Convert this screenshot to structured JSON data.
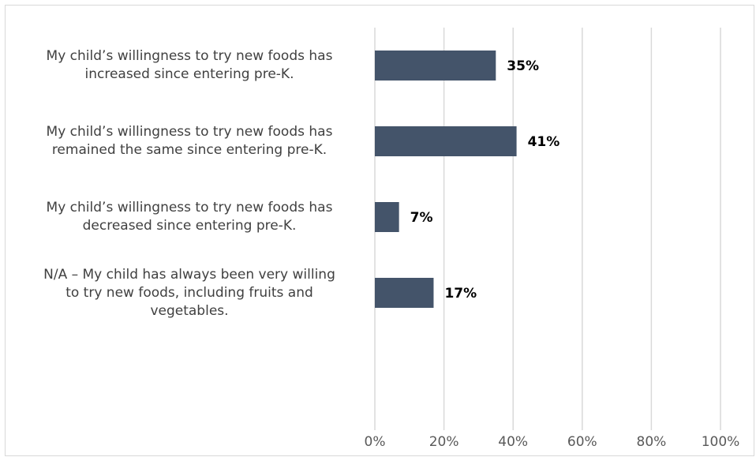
{
  "chart_data": {
    "type": "bar",
    "orientation": "horizontal",
    "categories": [
      "My child’s willingness to try new foods has increased since entering pre-K.",
      "My child’s willingness to try new foods has remained the same since entering pre-K.",
      "My child’s willingness to try new foods has decreased since entering pre-K.",
      "N/A – My child has always been very willing to try new foods, including fruits and vegetables."
    ],
    "category_lines": [
      [
        "My child’s willingness to try new foods has",
        "increased since entering pre-K."
      ],
      [
        "My child’s willingness to try new foods has",
        "remained the same since entering pre-K."
      ],
      [
        "My child’s willingness to try new foods has",
        "decreased since entering pre-K."
      ],
      [
        "N/A – My child has always been very willing",
        "to try new foods, including fruits and",
        "vegetables."
      ]
    ],
    "values": [
      35,
      41,
      7,
      17
    ],
    "data_labels": [
      "35%",
      "41%",
      "7%",
      "17%"
    ],
    "xlim": [
      0,
      100
    ],
    "x_ticks": [
      0,
      20,
      40,
      60,
      80,
      100
    ],
    "x_tick_labels": [
      "0%",
      "20%",
      "40%",
      "60%",
      "80%",
      "100%"
    ],
    "grid": "vertical",
    "legend": "none",
    "bar_color": "#44546a",
    "title": "",
    "xlabel": "",
    "ylabel": ""
  }
}
